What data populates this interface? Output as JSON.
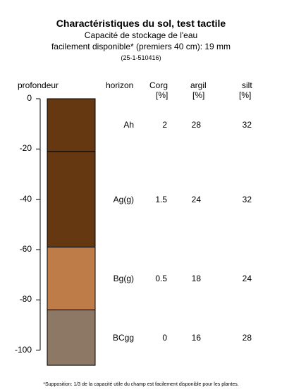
{
  "title": "Charactéristiques du sol, test tactile",
  "subtitle1": "Capacité de stockage de l'eau",
  "subtitle2": "facilement disponible* (premiers 40 cm): 19 mm",
  "code": "(25-1-510416)",
  "headers": {
    "depth": "profondeur",
    "horizon": "horizon",
    "corg": "Corg",
    "corg_unit": "[%]",
    "clay": "argil",
    "clay_unit": "[%]",
    "silt": "silt",
    "silt_unit": "[%]"
  },
  "footnote": "*Supposition: 1/3 de la capacité utile du champ est facilement disponible pour les plantes.",
  "chart_data": {
    "type": "table",
    "ylabel": "profondeur",
    "ylim": [
      -106,
      0
    ],
    "yticks": [
      0,
      -20,
      -40,
      -60,
      -80,
      -100
    ],
    "horizons": [
      {
        "name": "Ah",
        "top": 0,
        "bottom": -21,
        "corg": "2",
        "clay": "28",
        "silt": "32",
        "color": "#653812"
      },
      {
        "name": "Ag(g)",
        "top": -21,
        "bottom": -59,
        "corg": "1.5",
        "clay": "24",
        "silt": "32",
        "color": "#653812"
      },
      {
        "name": "Bg(g)",
        "top": -59,
        "bottom": -84,
        "corg": "0.5",
        "clay": "18",
        "silt": "24",
        "color": "#bd7c48"
      },
      {
        "name": "BCgg",
        "top": -84,
        "bottom": -106,
        "corg": "0",
        "clay": "16",
        "silt": "28",
        "color": "#8d7765"
      }
    ]
  }
}
